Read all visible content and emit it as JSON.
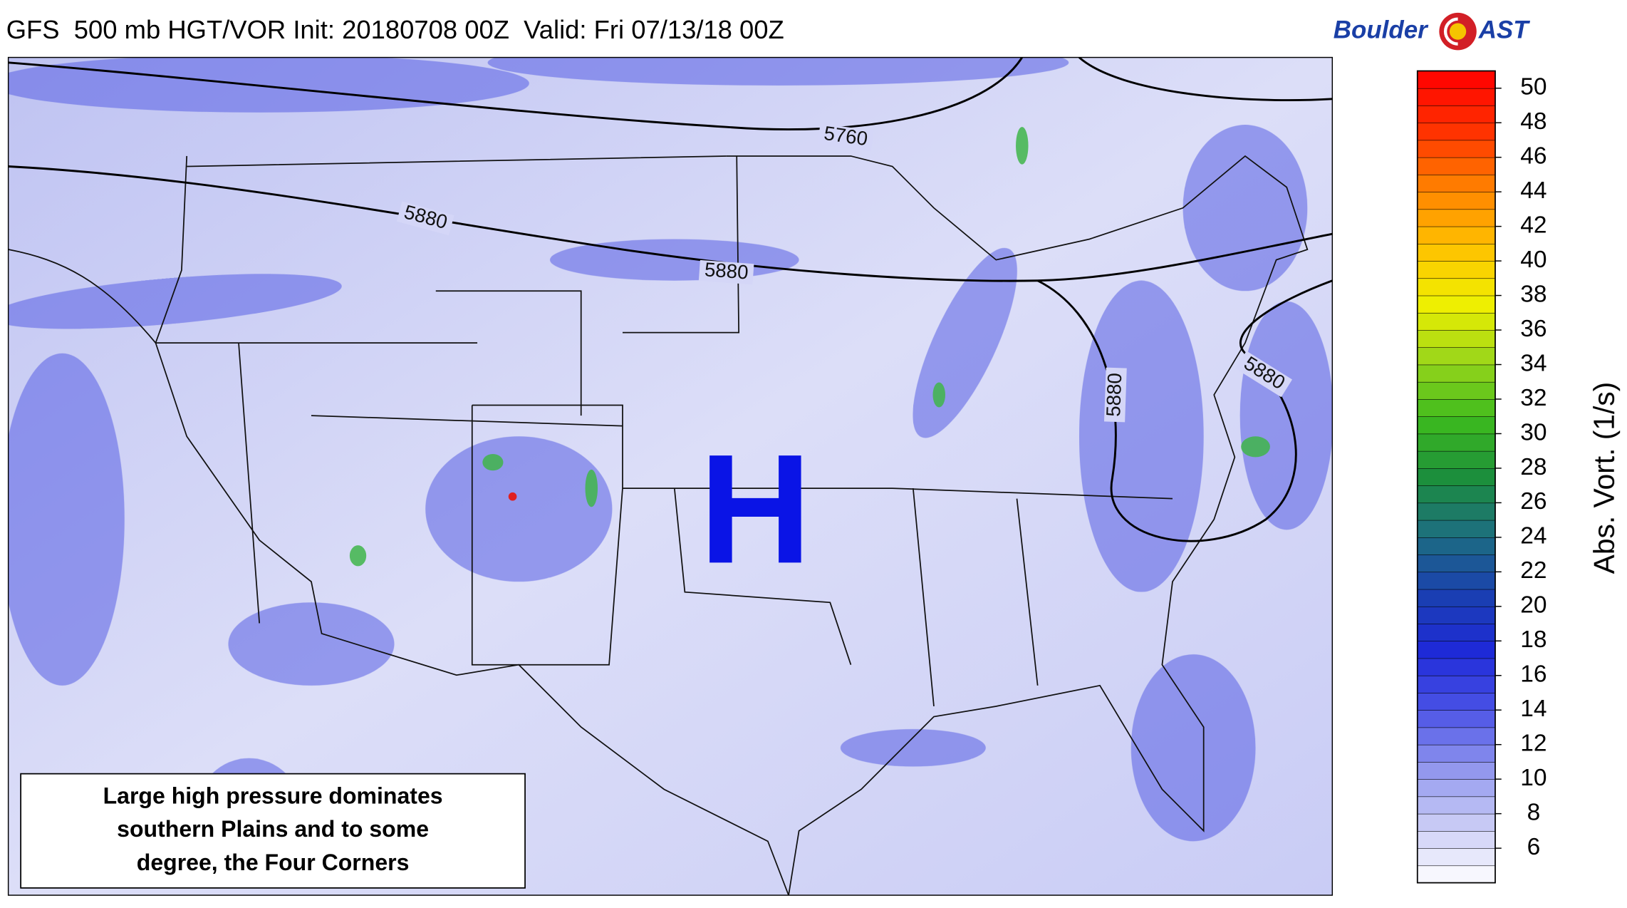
{
  "header": {
    "title": "GFS  500 mb HGT/VOR Init: 20180708 00Z  Valid: Fri 07/13/18 00Z",
    "logo_left": "Boulder",
    "logo_right": "AST"
  },
  "map": {
    "high_label": "H",
    "contour_labels": [
      "5760",
      "5880",
      "5880",
      "5880",
      "5880"
    ],
    "annotation": [
      "Large high pressure dominates",
      "southern Plains and to some",
      "degree, the Four Corners"
    ]
  },
  "colorbar": {
    "label": "Abs. Vort. (1/s)",
    "lim": [
      4,
      51
    ],
    "ticks": [
      6,
      8,
      10,
      12,
      14,
      16,
      18,
      20,
      22,
      24,
      26,
      28,
      30,
      32,
      34,
      36,
      38,
      40,
      42,
      44,
      46,
      48,
      50
    ],
    "colors": [
      "#ffffff",
      "#c9cbf5",
      "#8f95ee",
      "#4a52e6",
      "#1e2ad8",
      "#1a40b0",
      "#1d6e80",
      "#1c8f3c",
      "#3dbb1e",
      "#9ad61a",
      "#f0f000",
      "#ffc000",
      "#ff8000",
      "#ff3000",
      "#ff0000"
    ]
  }
}
